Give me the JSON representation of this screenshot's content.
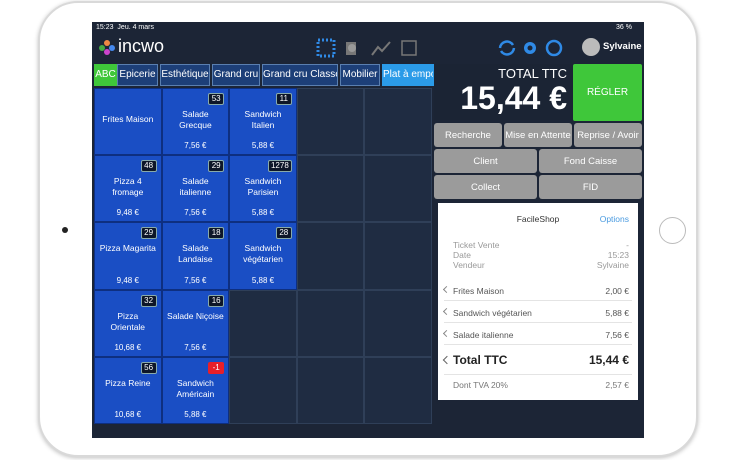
{
  "status_bar": {
    "time": "15:23",
    "date": "Jeu. 4 mars",
    "battery": "36 %"
  },
  "header": {
    "logo": "incwo",
    "user": "Sylvaine"
  },
  "tabs": [
    "ABC",
    "Epicerie",
    "Esthétique",
    "Grand cru",
    "Grand cru Classé",
    "Mobilier",
    "Plat à empo"
  ],
  "product_rows": [
    [
      {
        "name": "Frites Maison"
      },
      {
        "name": "Salade Grecque",
        "stock": 53,
        "price": "7,56 €"
      },
      {
        "name": "Sandwich Italien",
        "stock": 11,
        "price": "5,88 €"
      }
    ],
    [
      {
        "name": "Pizza 4 fromage",
        "stock": 48,
        "price": "9,48 €"
      },
      {
        "name": "Salade italienne",
        "stock": 29,
        "price": "7,56 €"
      },
      {
        "name": "Sandwich Parisien",
        "stock": 1278,
        "price": "5,88 €"
      }
    ],
    [
      {
        "name": "Pizza Magarita",
        "stock": 29,
        "price": "9,48 €"
      },
      {
        "name": "Salade Landaise",
        "stock": 18,
        "price": "7,56 €"
      },
      {
        "name": "Sandwich végétarien",
        "stock": 28,
        "price": "5,88 €"
      }
    ],
    [
      {
        "name": "Pizza Orientale",
        "stock": 32,
        "price": "10,68 €"
      },
      {
        "name": "Salade Niçoise",
        "stock": 16,
        "price": "7,56 €"
      }
    ],
    [
      {
        "name": "Pizza Reine",
        "stock": 56,
        "price": "10,68 €"
      },
      {
        "name": "Sandwich Américain",
        "stock": -1,
        "price": "5,88 €"
      }
    ]
  ],
  "total": {
    "label": "TOTAL TTC",
    "amount": "15,44 €",
    "pay_button": "RÉGLER"
  },
  "actions": [
    [
      "Recherche",
      "Mise en Attente",
      "Reprise / Avoir"
    ],
    [
      "Client",
      "Fond Caisse"
    ],
    [
      "Collect",
      "FID"
    ]
  ],
  "receipt": {
    "shop": "FacileShop",
    "options": "Options",
    "info": [
      {
        "label": "Ticket Vente",
        "value": "-"
      },
      {
        "label": "Date",
        "value": "15:23"
      },
      {
        "label": "Vendeur",
        "value": "Sylvaine"
      }
    ],
    "lines": [
      {
        "name": "Frites Maison",
        "amount": "2,00 €"
      },
      {
        "name": "Sandwich végétarien",
        "amount": "5,88 €"
      },
      {
        "name": "Salade italienne",
        "amount": "7,56 €"
      }
    ],
    "total_label": "Total TTC",
    "total": "15,44 €",
    "tax_label": "Dont TVA 20%",
    "tax": "2,57 €"
  }
}
